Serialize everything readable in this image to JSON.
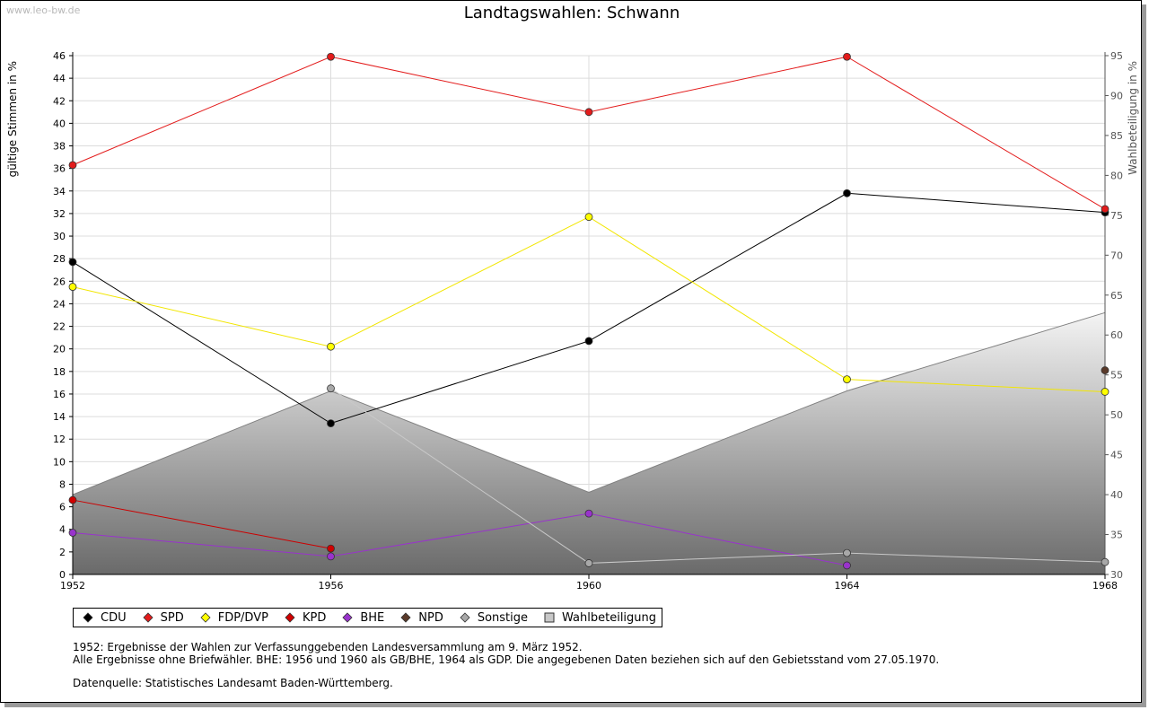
{
  "header": {
    "watermark": "www.leo-bw.de",
    "title": "Landtagswahlen: Schwann"
  },
  "chart_data": {
    "type": "line",
    "title": "Landtagswahlen: Schwann",
    "x": [
      "1952",
      "1956",
      "1960",
      "1964",
      "1968"
    ],
    "ylabel": "gültige Stimmen in %",
    "ylim": [
      0,
      46
    ],
    "yticks": [
      0,
      2,
      4,
      6,
      8,
      10,
      12,
      14,
      16,
      18,
      20,
      22,
      24,
      26,
      28,
      30,
      32,
      34,
      36,
      38,
      40,
      42,
      44,
      46
    ],
    "y2label": "Wahlbeteiligung in %",
    "y2lim": [
      30,
      95
    ],
    "y2ticks": [
      30,
      35,
      40,
      45,
      50,
      55,
      60,
      65,
      70,
      75,
      80,
      85,
      90,
      95
    ],
    "grid": true,
    "legend_position": "bottom",
    "series": [
      {
        "name": "CDU",
        "color": "#000000",
        "marker": "#000000",
        "values": [
          27.7,
          13.4,
          20.7,
          33.8,
          32.1
        ]
      },
      {
        "name": "SPD",
        "color": "#e31b1b",
        "marker": "#e31b1b",
        "values": [
          36.3,
          45.9,
          41.0,
          45.9,
          32.4
        ]
      },
      {
        "name": "FDP/DVP",
        "color": "#f2e600",
        "marker": "#ffff00",
        "values": [
          25.5,
          20.2,
          31.7,
          17.3,
          16.2
        ]
      },
      {
        "name": "KPD",
        "color": "#cc0000",
        "marker": "#d00000",
        "values": [
          6.6,
          2.3,
          null,
          null,
          null
        ]
      },
      {
        "name": "BHE",
        "color": "#9933cc",
        "marker": "#9933cc",
        "values": [
          3.7,
          1.6,
          5.4,
          0.8,
          null
        ]
      },
      {
        "name": "NPD",
        "color": "#5a3a2a",
        "marker": "#5a3a2a",
        "values": [
          null,
          null,
          null,
          null,
          18.1
        ]
      },
      {
        "name": "Sonstige",
        "color": "#c8c8c8",
        "marker": "#a8a8a8",
        "values": [
          null,
          16.5,
          1.0,
          1.9,
          1.1
        ]
      },
      {
        "name": "Wahlbeteiligung",
        "type": "area",
        "axis": "right",
        "color": "#808080",
        "marker": "#c8c8c8",
        "values": [
          40.0,
          53.0,
          40.3,
          53.0,
          62.8
        ]
      }
    ]
  },
  "notes": {
    "line1": "1952: Ergebnisse der Wahlen zur Verfassunggebenden Landesversammlung am 9. März 1952.",
    "line2": "Alle Ergebnisse ohne Briefwähler. BHE: 1956 und 1960 als GB/BHE, 1964 als GDP. Die angegebenen Daten beziehen sich auf den Gebietsstand vom 27.05.1970.",
    "source": "Datenquelle: Statistisches Landesamt Baden-Württemberg."
  }
}
